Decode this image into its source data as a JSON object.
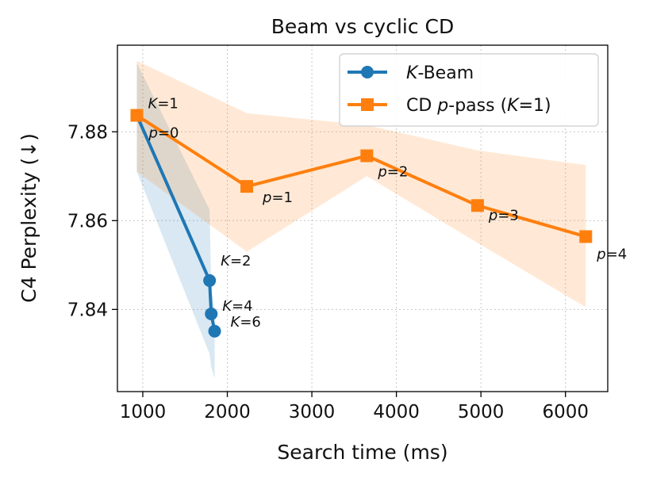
{
  "chart_data": {
    "type": "line",
    "title": "Beam vs cyclic CD",
    "xlabel": "Search time (ms)",
    "ylabel": "C4 Perplexity (↓)",
    "xlim": [
      700,
      6500
    ],
    "ylim": [
      7.8215,
      7.8995
    ],
    "xticks": [
      1000,
      2000,
      3000,
      4000,
      5000,
      6000
    ],
    "yticks": [
      7.84,
      7.86,
      7.88
    ],
    "grid": true,
    "legend_position": "top-right",
    "series": [
      {
        "name": "K-Beam",
        "name_prefix": "K",
        "name_suffix": "-Beam",
        "color": "#1f77b4",
        "marker": "circle",
        "x": [
          930,
          1790,
          1810,
          1850
        ],
        "y": [
          7.8837,
          7.8465,
          7.839,
          7.8351
        ],
        "band_upper": [
          7.8955,
          7.8625,
          7.8445,
          7.84
        ],
        "band_lower": [
          7.871,
          7.83,
          7.827,
          7.8245
        ],
        "labels": [
          {
            "var": "K",
            "eq": "=1"
          },
          {
            "var": "K",
            "eq": "=2"
          },
          {
            "var": "K",
            "eq": "=4"
          },
          {
            "var": "K",
            "eq": "=6"
          }
        ]
      },
      {
        "name": "CD p-pass (K=1)",
        "name_parts": [
          "CD ",
          "p",
          "-pass (",
          "K",
          "=1)"
        ],
        "color": "#ff7f0e",
        "marker": "square",
        "x": [
          930,
          2230,
          3650,
          4960,
          6240
        ],
        "y": [
          7.8837,
          7.8677,
          7.8746,
          7.8634,
          7.8564
        ],
        "band_upper": [
          7.896,
          7.8842,
          7.8815,
          7.8758,
          7.8725
        ],
        "band_lower": [
          7.871,
          7.853,
          7.87,
          7.855,
          7.8405
        ],
        "labels": [
          {
            "var": "p",
            "eq": "=0"
          },
          {
            "var": "p",
            "eq": "=1"
          },
          {
            "var": "p",
            "eq": "=2"
          },
          {
            "var": "p",
            "eq": "=3"
          },
          {
            "var": "p",
            "eq": "=4"
          }
        ]
      }
    ]
  }
}
